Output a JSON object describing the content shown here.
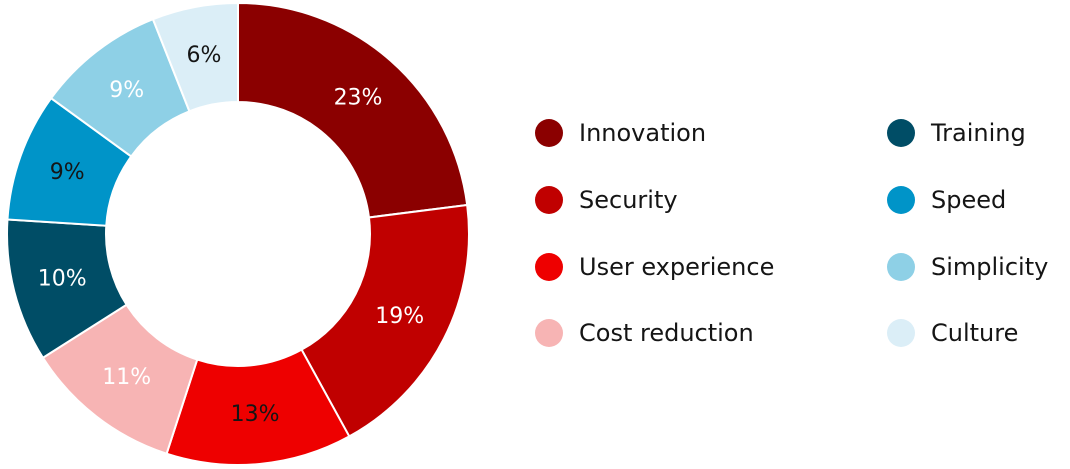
{
  "chart_data": {
    "type": "pie",
    "donut": true,
    "title": "",
    "legend_position": "right",
    "categories": [
      "Innovation",
      "Security",
      "User experience",
      "Cost reduction",
      "Training",
      "Speed",
      "Simplicity",
      "Culture"
    ],
    "values": [
      23,
      19,
      13,
      11,
      10,
      9,
      9,
      6
    ],
    "value_labels": [
      "23%",
      "19%",
      "13%",
      "11%",
      "10%",
      "9%",
      "9%",
      "6%"
    ],
    "colors": [
      "#8b0000",
      "#c00000",
      "#ee0000",
      "#f7b4b4",
      "#004d66",
      "#0094c8",
      "#8ed0e6",
      "#dbeef7"
    ],
    "label_colors": [
      "#ffffff",
      "#ffffff",
      "#151515",
      "#ffffff",
      "#ffffff",
      "#151515",
      "#ffffff",
      "#151515"
    ]
  }
}
